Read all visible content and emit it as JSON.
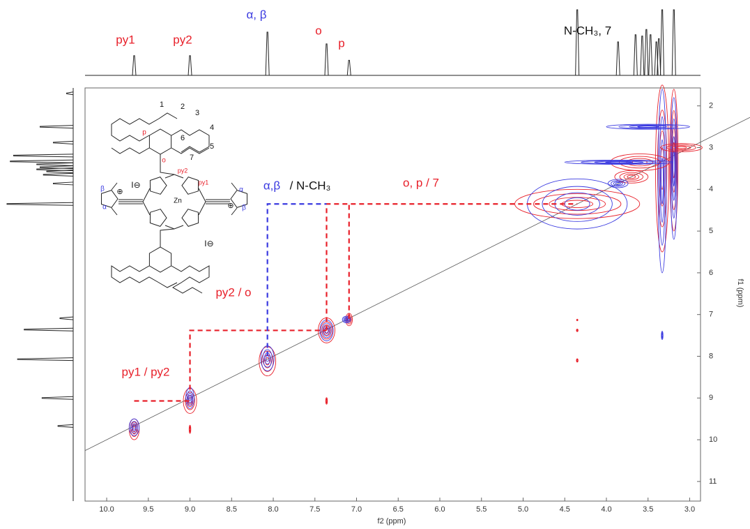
{
  "chart_data": {
    "type": "nmr-2d",
    "x_label": "f2 (ppm)",
    "y_label": "f1 (ppm)",
    "xlim": [
      10.26,
      2.87
    ],
    "ylim": [
      1.57,
      11.47
    ],
    "xticks": [
      {
        "value": 10,
        "label": "10.0"
      },
      9.5,
      {
        "value": 9,
        "label": "9.0"
      },
      8.5,
      {
        "value": 8,
        "label": "8.0"
      },
      7.5,
      {
        "value": 7,
        "label": "7.0"
      },
      6.5,
      {
        "value": 6,
        "label": "6.0"
      },
      5.5,
      {
        "value": 5,
        "label": "5.0"
      },
      4.5,
      {
        "value": 4,
        "label": "4.0"
      },
      3.5,
      {
        "value": 3,
        "label": "3.0"
      }
    ],
    "yticks": [
      2,
      3,
      4,
      5,
      6,
      7,
      8,
      9,
      10,
      11
    ],
    "colors": {
      "positive": "#e8202a",
      "negative": "#3a3ae0",
      "spectrum": "#222222"
    },
    "top_spectrum": [
      {
        "ppm": 9.67,
        "intensity": 0.3
      },
      {
        "ppm": 9.0,
        "intensity": 0.3
      },
      {
        "ppm": 8.07,
        "intensity": 0.66
      },
      {
        "ppm": 7.36,
        "intensity": 0.48
      },
      {
        "ppm": 7.09,
        "intensity": 0.23
      },
      {
        "ppm": 4.35,
        "intensity": 1.0
      },
      {
        "ppm": 3.86,
        "intensity": 0.51
      },
      {
        "ppm": 3.65,
        "intensity": 0.62
      },
      {
        "ppm": 3.57,
        "intensity": 0.6
      },
      {
        "ppm": 3.52,
        "intensity": 0.7
      },
      {
        "ppm": 3.47,
        "intensity": 0.62
      },
      {
        "ppm": 3.4,
        "intensity": 0.51
      },
      {
        "ppm": 3.37,
        "intensity": 0.56
      },
      {
        "ppm": 3.33,
        "intensity": 1.0
      },
      {
        "ppm": 3.19,
        "intensity": 1.0
      }
    ],
    "left_spectrum": [
      {
        "ppm": 1.7,
        "intensity": 0.1
      },
      {
        "ppm": 2.5,
        "intensity": 0.5
      },
      {
        "ppm": 2.88,
        "intensity": 0.3
      },
      {
        "ppm": 3.19,
        "intensity": 0.9
      },
      {
        "ppm": 3.33,
        "intensity": 0.95
      },
      {
        "ppm": 3.4,
        "intensity": 0.55
      },
      {
        "ppm": 3.47,
        "intensity": 0.5
      },
      {
        "ppm": 3.52,
        "intensity": 0.55
      },
      {
        "ppm": 3.57,
        "intensity": 0.4
      },
      {
        "ppm": 3.65,
        "intensity": 0.45
      },
      {
        "ppm": 3.86,
        "intensity": 0.3
      },
      {
        "ppm": 4.35,
        "intensity": 1.0
      },
      {
        "ppm": 7.09,
        "intensity": 0.2
      },
      {
        "ppm": 7.36,
        "intensity": 0.74
      },
      {
        "ppm": 8.07,
        "intensity": 0.84
      },
      {
        "ppm": 9.0,
        "intensity": 0.47
      },
      {
        "ppm": 9.67,
        "intensity": 0.23
      }
    ],
    "peaks": [
      {
        "f2": 9.67,
        "f1": 9.75,
        "f2_extent": 0.06,
        "f1_extent": 0.25,
        "color": "#e8202a"
      },
      {
        "f2": 9.67,
        "f1": 9.7,
        "f2_extent": 0.06,
        "f1_extent": 0.2,
        "color": "#3a3ae0"
      },
      {
        "f2": 9.0,
        "f1": 9.07,
        "f2_extent": 0.08,
        "f1_extent": 0.3,
        "color": "#e8202a"
      },
      {
        "f2": 9.0,
        "f1": 9.0,
        "f2_extent": 0.05,
        "f1_extent": 0.25,
        "color": "#3a3ae0"
      },
      {
        "f2": 8.07,
        "f1": 8.12,
        "f2_extent": 0.1,
        "f1_extent": 0.35,
        "color": "#e8202a"
      },
      {
        "f2": 8.07,
        "f1": 8.05,
        "f2_extent": 0.08,
        "f1_extent": 0.3,
        "color": "#3a3ae0"
      },
      {
        "f2": 7.36,
        "f1": 7.38,
        "f2_extent": 0.1,
        "f1_extent": 0.3,
        "color": "#e8202a"
      },
      {
        "f2": 7.36,
        "f1": 7.38,
        "f2_extent": 0.08,
        "f1_extent": 0.25,
        "color": "#3a3ae0"
      },
      {
        "f2": 7.09,
        "f1": 7.12,
        "f2_extent": 0.04,
        "f1_extent": 0.15,
        "color": "#e8202a"
      },
      {
        "f2": 7.12,
        "f1": 7.12,
        "f2_extent": 0.05,
        "f1_extent": 0.08,
        "color": "#3a3ae0"
      },
      {
        "f2": 4.35,
        "f1": 4.35,
        "f2_extent": 0.75,
        "f1_extent": 0.35,
        "color": "#e8202a"
      },
      {
        "f2": 4.35,
        "f1": 4.35,
        "f2_extent": 0.6,
        "f1_extent": 0.6,
        "color": "#3a3ae0"
      },
      {
        "f2": 3.33,
        "f1": 3.5,
        "f2_extent": 0.08,
        "f1_extent": 2.0,
        "color": "#e8202a"
      },
      {
        "f2": 3.33,
        "f1": 3.8,
        "f2_extent": 0.05,
        "f1_extent": 2.2,
        "color": "#3a3ae0"
      },
      {
        "f2": 3.19,
        "f1": 3.3,
        "f2_extent": 0.05,
        "f1_extent": 1.7,
        "color": "#e8202a"
      },
      {
        "f2": 3.19,
        "f1": 3.5,
        "f2_extent": 0.04,
        "f1_extent": 1.7,
        "color": "#3a3ae0"
      },
      {
        "f2": 3.6,
        "f1": 3.35,
        "f2_extent": 0.35,
        "f1_extent": 0.2,
        "color": "#e8202a"
      },
      {
        "f2": 3.85,
        "f1": 3.35,
        "f2_extent": 0.65,
        "f1_extent": 0.05,
        "color": "#3a3ae0"
      },
      {
        "f2": 3.5,
        "f1": 2.5,
        "f2_extent": 0.5,
        "f1_extent": 0.06,
        "color": "#3a3ae0"
      },
      {
        "f2": 3.1,
        "f1": 3.0,
        "f2_extent": 0.25,
        "f1_extent": 0.1,
        "color": "#e8202a"
      },
      {
        "f2": 3.7,
        "f1": 3.7,
        "f2_extent": 0.2,
        "f1_extent": 0.15,
        "color": "#e8202a"
      },
      {
        "f2": 3.86,
        "f1": 3.86,
        "f2_extent": 0.12,
        "f1_extent": 0.1,
        "color": "#3a3ae0"
      },
      {
        "f2": 7.36,
        "f1": 9.07,
        "f2_extent": 0.01,
        "f1_extent": 0.08,
        "color": "#e8202a"
      },
      {
        "f2": 9.0,
        "f1": 9.75,
        "f2_extent": 0.01,
        "f1_extent": 0.1,
        "color": "#e8202a"
      },
      {
        "f2": 4.35,
        "f1": 7.38,
        "f2_extent": 0.01,
        "f1_extent": 0.03,
        "color": "#e8202a"
      },
      {
        "f2": 4.35,
        "f1": 8.1,
        "f2_extent": 0.01,
        "f1_extent": 0.04,
        "color": "#e8202a"
      },
      {
        "f2": 4.35,
        "f1": 7.13,
        "f2_extent": 0.005,
        "f1_extent": 0.02,
        "color": "#e8202a"
      },
      {
        "f2": 3.33,
        "f1": 7.5,
        "f2_extent": 0.01,
        "f1_extent": 0.1,
        "color": "#3a3ae0"
      }
    ],
    "correlations": [
      {
        "x": [
          9.67,
          9.0
        ],
        "y": [
          9.07,
          9.07
        ],
        "color": "#e8202a"
      },
      {
        "x": [
          9.0,
          9.0,
          7.36
        ],
        "y": [
          8.8,
          7.38,
          7.38
        ],
        "color": "#e8202a"
      },
      {
        "x": [
          7.36,
          7.36,
          4.35
        ],
        "y": [
          7.38,
          4.35,
          4.35
        ],
        "color": "#e8202a"
      },
      {
        "x": [
          7.09,
          7.09
        ],
        "y": [
          7.1,
          4.35
        ],
        "color": "#e8202a"
      },
      {
        "x": [
          8.07,
          8.07,
          7.36
        ],
        "y": [
          8.0,
          4.35,
          4.35
        ],
        "color": "#3a3ae0"
      }
    ],
    "annotations": [
      {
        "text": "py1",
        "color": "#e8202a"
      },
      {
        "text": "py2",
        "color": "#e8202a"
      },
      {
        "text": "α, β",
        "color": "#3a3ae0"
      },
      {
        "text": "o",
        "color": "#e8202a"
      },
      {
        "text": "p",
        "color": "#e8202a"
      },
      {
        "text": "N-CH₃, 7",
        "color": "#111111"
      },
      {
        "text": "α,β",
        "color": "#3a3ae0"
      },
      {
        "text": "/ N-CH₃",
        "color": "#111111"
      },
      {
        "text": "o, p / 7",
        "color": "#e8202a"
      },
      {
        "text": "py2 / o",
        "color": "#e8202a"
      },
      {
        "text": "py1 / py2",
        "color": "#e8202a"
      }
    ],
    "structure_labels": [
      {
        "text": "1",
        "color": "#111111"
      },
      {
        "text": "2",
        "color": "#111111"
      },
      {
        "text": "3",
        "color": "#111111"
      },
      {
        "text": "4",
        "color": "#111111"
      },
      {
        "text": "5",
        "color": "#111111"
      },
      {
        "text": "6",
        "color": "#111111"
      },
      {
        "text": "7",
        "color": "#111111"
      },
      {
        "text": "p",
        "color": "#e8202a"
      },
      {
        "text": "o",
        "color": "#e8202a"
      },
      {
        "text": "py2",
        "color": "#e8202a"
      },
      {
        "text": "py1",
        "color": "#e8202a"
      },
      {
        "text": "Zn",
        "color": "#111111"
      },
      {
        "text": "β",
        "color": "#3a3ae0"
      },
      {
        "text": "α",
        "color": "#3a3ae0"
      },
      {
        "text": "α",
        "color": "#3a3ae0"
      },
      {
        "text": "β",
        "color": "#3a3ae0"
      },
      {
        "text": "I⊖",
        "color": "#111111"
      },
      {
        "text": "I⊖",
        "color": "#111111"
      },
      {
        "text": "⊕",
        "color": "#111111"
      },
      {
        "text": "⊕",
        "color": "#111111"
      }
    ]
  }
}
